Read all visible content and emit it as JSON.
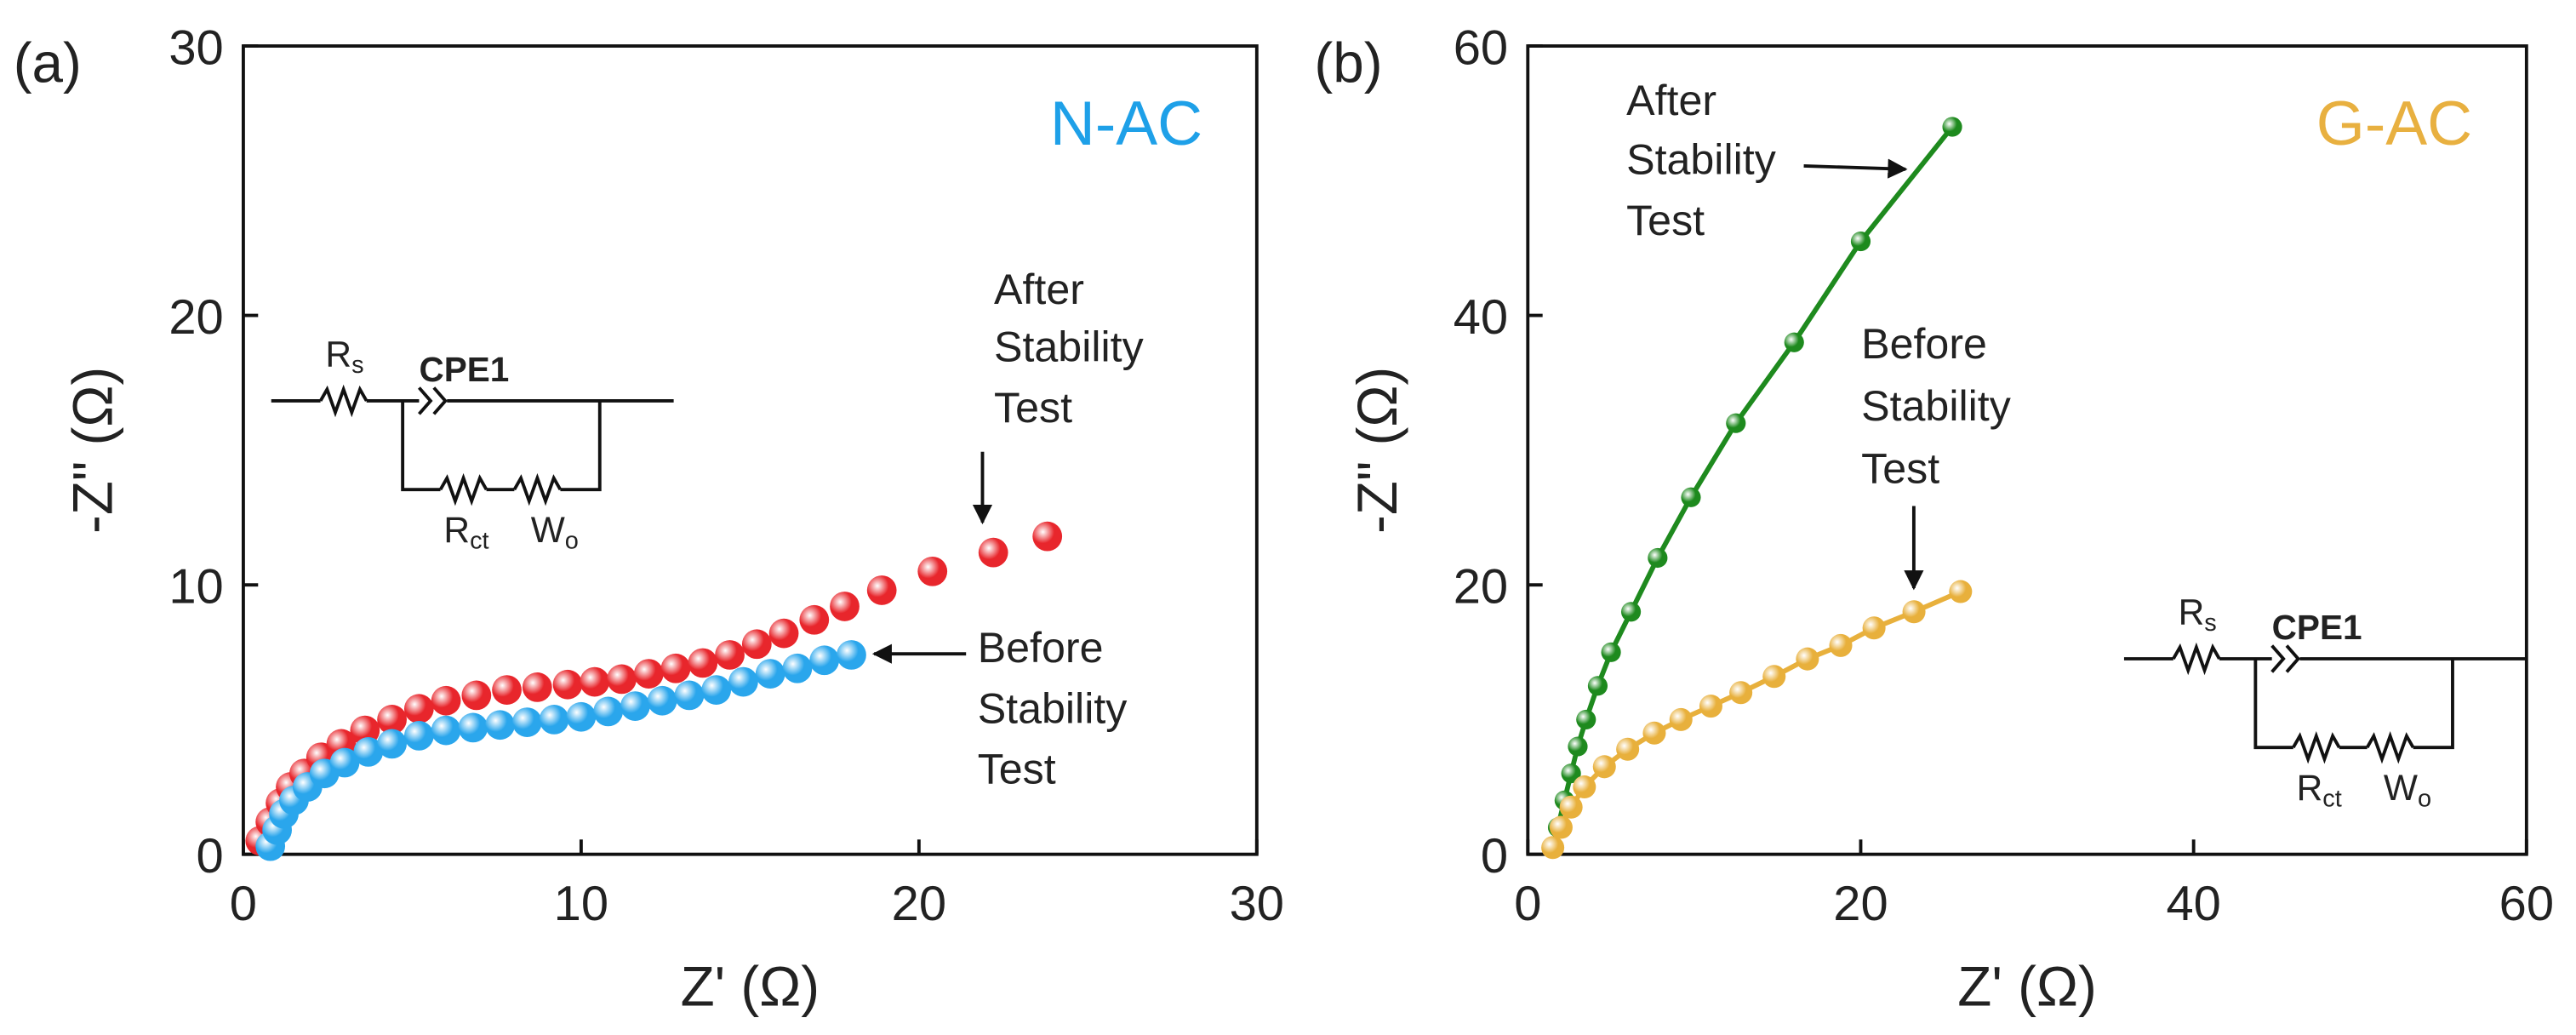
{
  "chart_data": [
    {
      "type": "scatter",
      "panel": "(a)",
      "sample": "N-AC",
      "sample_color": "#1ea0e8",
      "xlabel": "Z' (Ω)",
      "ylabel": "-Z\" (Ω)",
      "xlim": [
        0,
        30
      ],
      "xticks": [
        0,
        10,
        20,
        30
      ],
      "ylim": [
        0,
        30
      ],
      "yticks": [
        0,
        10,
        20,
        30
      ],
      "series": [
        {
          "color": "#e8262c",
          "connected": false,
          "x": [
            0.5,
            0.8,
            1.1,
            1.4,
            1.8,
            2.3,
            2.9,
            3.6,
            4.4,
            5.2,
            6.0,
            6.9,
            7.8,
            8.7,
            9.6,
            10.4,
            11.2,
            12.0,
            12.8,
            13.6,
            14.4,
            15.2,
            16.0,
            16.9,
            17.8,
            18.9,
            20.4,
            22.2,
            23.8
          ],
          "values": [
            0.5,
            1.2,
            1.9,
            2.5,
            3.0,
            3.6,
            4.1,
            4.6,
            5.0,
            5.4,
            5.7,
            5.9,
            6.1,
            6.2,
            6.3,
            6.4,
            6.5,
            6.7,
            6.9,
            7.1,
            7.4,
            7.8,
            8.2,
            8.7,
            9.2,
            9.8,
            10.5,
            11.2,
            11.8
          ]
        },
        {
          "color": "#2aa6ec",
          "connected": false,
          "x": [
            0.8,
            1.0,
            1.2,
            1.5,
            1.9,
            2.4,
            3.0,
            3.7,
            4.4,
            5.2,
            6.0,
            6.8,
            7.6,
            8.4,
            9.2,
            10.0,
            10.8,
            11.6,
            12.4,
            13.2,
            14.0,
            14.8,
            15.6,
            16.4,
            17.2,
            18.0
          ],
          "values": [
            0.3,
            0.9,
            1.5,
            2.0,
            2.5,
            3.0,
            3.4,
            3.8,
            4.1,
            4.4,
            4.6,
            4.7,
            4.8,
            4.9,
            5.0,
            5.1,
            5.3,
            5.5,
            5.7,
            5.9,
            6.1,
            6.4,
            6.7,
            6.9,
            7.2,
            7.4
          ]
        }
      ],
      "annotations": [
        [
          "After",
          "Stability",
          "Test"
        ],
        [
          "Before",
          "Stability",
          "Test"
        ]
      ],
      "circuit": [
        {
          "text": "R",
          "sub": "s"
        },
        {
          "text": "CPE1"
        },
        {
          "text": "R",
          "sub": "ct"
        },
        {
          "text": "W",
          "sub": "o"
        }
      ]
    },
    {
      "type": "scatter",
      "panel": "(b)",
      "sample": "G-AC",
      "sample_color": "#e8b040",
      "xlabel": "Z' (Ω)",
      "ylabel": "-Z\" (Ω)",
      "xlim": [
        0,
        60
      ],
      "xticks": [
        0,
        20,
        40,
        60
      ],
      "ylim": [
        0,
        60
      ],
      "yticks": [
        0,
        20,
        40,
        60
      ],
      "series": [
        {
          "color": "#1e8a1e",
          "connected": true,
          "x": [
            1.5,
            1.8,
            2.2,
            2.6,
            3.0,
            3.5,
            4.2,
            5.0,
            6.2,
            7.8,
            9.8,
            12.5,
            16,
            20,
            25.5
          ],
          "values": [
            0.5,
            2,
            4,
            6,
            8,
            10,
            12.5,
            15,
            18,
            22,
            26.5,
            32,
            38,
            45.5,
            54
          ]
        },
        {
          "color": "#e8b03c",
          "connected": true,
          "x": [
            1.5,
            2.0,
            2.6,
            3.4,
            4.6,
            6,
            7.6,
            9.2,
            11,
            12.8,
            14.8,
            16.8,
            18.8,
            20.8,
            23.2,
            26
          ],
          "values": [
            0.5,
            2,
            3.5,
            5,
            6.5,
            7.8,
            9,
            10,
            11,
            12,
            13.2,
            14.5,
            15.5,
            16.8,
            18,
            19.5
          ]
        }
      ],
      "annotations": [
        [
          "After",
          "Stability",
          "Test"
        ],
        [
          "Before",
          "Stability",
          "Test"
        ]
      ],
      "circuit": [
        {
          "text": "R",
          "sub": "s"
        },
        {
          "text": "CPE1"
        },
        {
          "text": "R",
          "sub": "ct"
        },
        {
          "text": "W",
          "sub": "o"
        }
      ]
    }
  ]
}
